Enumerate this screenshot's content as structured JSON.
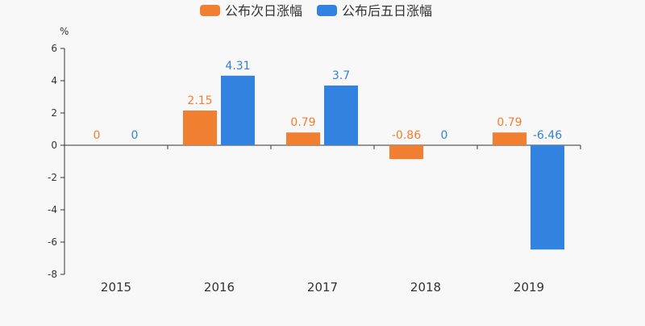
{
  "chart_data": {
    "type": "bar",
    "categories": [
      "2015",
      "2016",
      "2017",
      "2018",
      "2019"
    ],
    "series": [
      {
        "name": "公布次日涨幅",
        "values": [
          0,
          2.15,
          0.79,
          -0.86,
          0.79
        ],
        "color": "#f07f32"
      },
      {
        "name": "公布后五日涨幅",
        "values": [
          0,
          4.31,
          3.7,
          0,
          -6.46
        ],
        "color": "#3282e0"
      }
    ],
    "ylabel": "%",
    "ylim": [
      -8,
      6
    ],
    "yticks": [
      6,
      4,
      2,
      0,
      -2,
      -4,
      -6,
      -8
    ],
    "grid": false,
    "legend": "top-center"
  }
}
